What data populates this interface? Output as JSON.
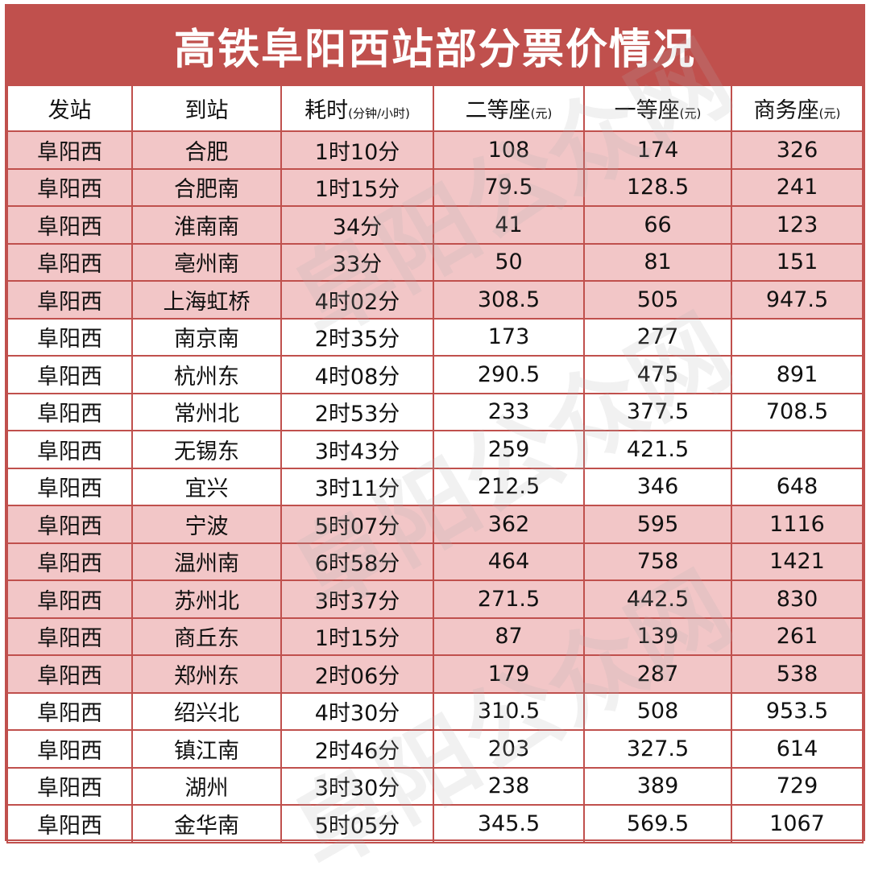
{
  "title": "高铁阜阳西站部分票价情况",
  "watermark": "阜阳公众网",
  "colors": {
    "accent": "#c0504d",
    "highlight_row": "#f2c6c7"
  },
  "headers": [
    {
      "label": "发站",
      "unit": ""
    },
    {
      "label": "到站",
      "unit": ""
    },
    {
      "label": "耗时",
      "unit": "(分钟/小时)"
    },
    {
      "label": "二等座",
      "unit": "(元)"
    },
    {
      "label": "一等座",
      "unit": "(元)"
    },
    {
      "label": "商务座",
      "unit": "(元)"
    }
  ],
  "rows": [
    {
      "from": "阜阳西",
      "to": "合肥",
      "time": "1时10分",
      "second": "108",
      "first": "174",
      "business": "326",
      "highlight": true
    },
    {
      "from": "阜阳西",
      "to": "合肥南",
      "time": "1时15分",
      "second": "79.5",
      "first": "128.5",
      "business": "241",
      "highlight": true
    },
    {
      "from": "阜阳西",
      "to": "淮南南",
      "time": "34分",
      "second": "41",
      "first": "66",
      "business": "123",
      "highlight": true
    },
    {
      "from": "阜阳西",
      "to": "亳州南",
      "time": "33分",
      "second": "50",
      "first": "81",
      "business": "151",
      "highlight": true
    },
    {
      "from": "阜阳西",
      "to": "上海虹桥",
      "time": "4时02分",
      "second": "308.5",
      "first": "505",
      "business": "947.5",
      "highlight": true
    },
    {
      "from": "阜阳西",
      "to": "南京南",
      "time": "2时35分",
      "second": "173",
      "first": "277",
      "business": "",
      "highlight": false
    },
    {
      "from": "阜阳西",
      "to": "杭州东",
      "time": "4时08分",
      "second": "290.5",
      "first": "475",
      "business": "891",
      "highlight": false
    },
    {
      "from": "阜阳西",
      "to": "常州北",
      "time": "2时53分",
      "second": "233",
      "first": "377.5",
      "business": "708.5",
      "highlight": false
    },
    {
      "from": "阜阳西",
      "to": "无锡东",
      "time": "3时43分",
      "second": "259",
      "first": "421.5",
      "business": "",
      "highlight": false
    },
    {
      "from": "阜阳西",
      "to": "宜兴",
      "time": "3时11分",
      "second": "212.5",
      "first": "346",
      "business": "648",
      "highlight": false
    },
    {
      "from": "阜阳西",
      "to": "宁波",
      "time": "5时07分",
      "second": "362",
      "first": "595",
      "business": "1116",
      "highlight": true
    },
    {
      "from": "阜阳西",
      "to": "温州南",
      "time": "6时58分",
      "second": "464",
      "first": "758",
      "business": "1421",
      "highlight": true
    },
    {
      "from": "阜阳西",
      "to": "苏州北",
      "time": "3时37分",
      "second": "271.5",
      "first": "442.5",
      "business": "830",
      "highlight": true
    },
    {
      "from": "阜阳西",
      "to": "商丘东",
      "time": "1时15分",
      "second": "87",
      "first": "139",
      "business": "261",
      "highlight": true
    },
    {
      "from": "阜阳西",
      "to": "郑州东",
      "time": "2时06分",
      "second": "179",
      "first": "287",
      "business": "538",
      "highlight": true
    },
    {
      "from": "阜阳西",
      "to": "绍兴北",
      "time": "4时30分",
      "second": "310.5",
      "first": "508",
      "business": "953.5",
      "highlight": false
    },
    {
      "from": "阜阳西",
      "to": "镇江南",
      "time": "2时46分",
      "second": "203",
      "first": "327.5",
      "business": "614",
      "highlight": false
    },
    {
      "from": "阜阳西",
      "to": "湖州",
      "time": "3时30分",
      "second": "238",
      "first": "389",
      "business": "729",
      "highlight": false
    },
    {
      "from": "阜阳西",
      "to": "金华南",
      "time": "5时05分",
      "second": "345.5",
      "first": "569.5",
      "business": "1067",
      "highlight": false
    }
  ]
}
